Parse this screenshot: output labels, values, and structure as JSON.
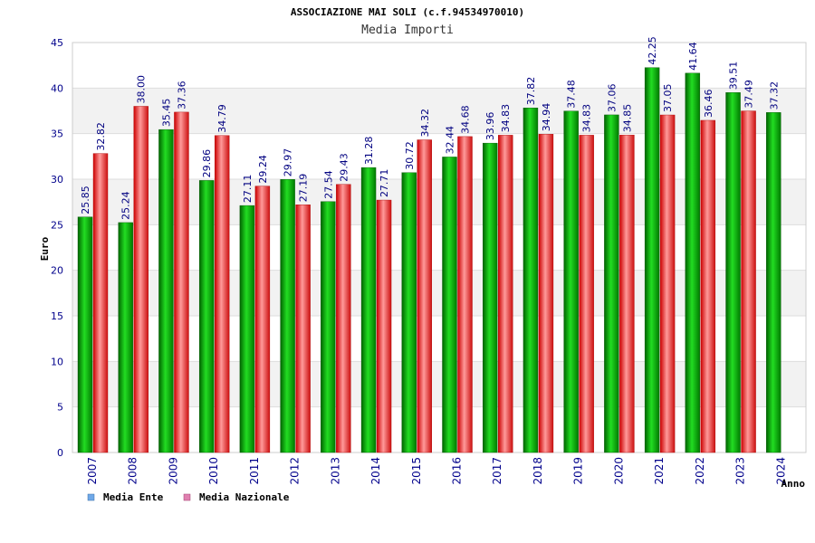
{
  "chart_data": {
    "type": "bar",
    "title": "ASSOCIAZIONE MAI SOLI (c.f.94534970010)",
    "subtitle": "Media Importi",
    "ylabel": "Euro",
    "xlabel": "Anno",
    "ylim": [
      0,
      45
    ],
    "yticks": [
      0,
      5,
      10,
      15,
      20,
      25,
      30,
      35,
      40,
      45
    ],
    "categories": [
      "2007",
      "2008",
      "2009",
      "2010",
      "2011",
      "2012",
      "2013",
      "2014",
      "2015",
      "2016",
      "2017",
      "2018",
      "2019",
      "2020",
      "2021",
      "2022",
      "2023",
      "2024"
    ],
    "series": [
      {
        "name": "Media Ente",
        "color": "#00b000",
        "legend_color": "#6fa8e8",
        "values": [
          25.85,
          25.24,
          35.45,
          29.86,
          27.11,
          29.97,
          27.54,
          31.28,
          30.72,
          32.44,
          33.96,
          37.82,
          37.48,
          37.06,
          42.25,
          41.64,
          39.51,
          37.32
        ],
        "labels": [
          "25.85",
          "25.24",
          "35.45",
          "29.86",
          "27.11",
          "29.97",
          "27.54",
          "31.28",
          "30.72",
          "32.44",
          "33.96",
          "37.82",
          "37.48",
          "37.06",
          "42.25",
          "41.64",
          "39.51",
          "37.32"
        ]
      },
      {
        "name": "Media Nazionale",
        "color": "#e02020",
        "legend_color": "#e080b0",
        "values": [
          32.82,
          38.0,
          37.36,
          34.79,
          29.24,
          27.19,
          29.43,
          27.71,
          34.32,
          34.68,
          34.83,
          34.94,
          34.83,
          34.85,
          37.05,
          36.46,
          37.49,
          null
        ],
        "labels": [
          "32.82",
          "38.00",
          "37.36",
          "34.79",
          "29.24",
          "27.19",
          "29.43",
          "27.71",
          "34.32",
          "34.68",
          "34.83",
          "34.94",
          "34.83",
          "34.85",
          "37.05",
          "36.46",
          "37.49",
          null
        ]
      }
    ],
    "grid": true,
    "legend_position": "bottom-left"
  }
}
